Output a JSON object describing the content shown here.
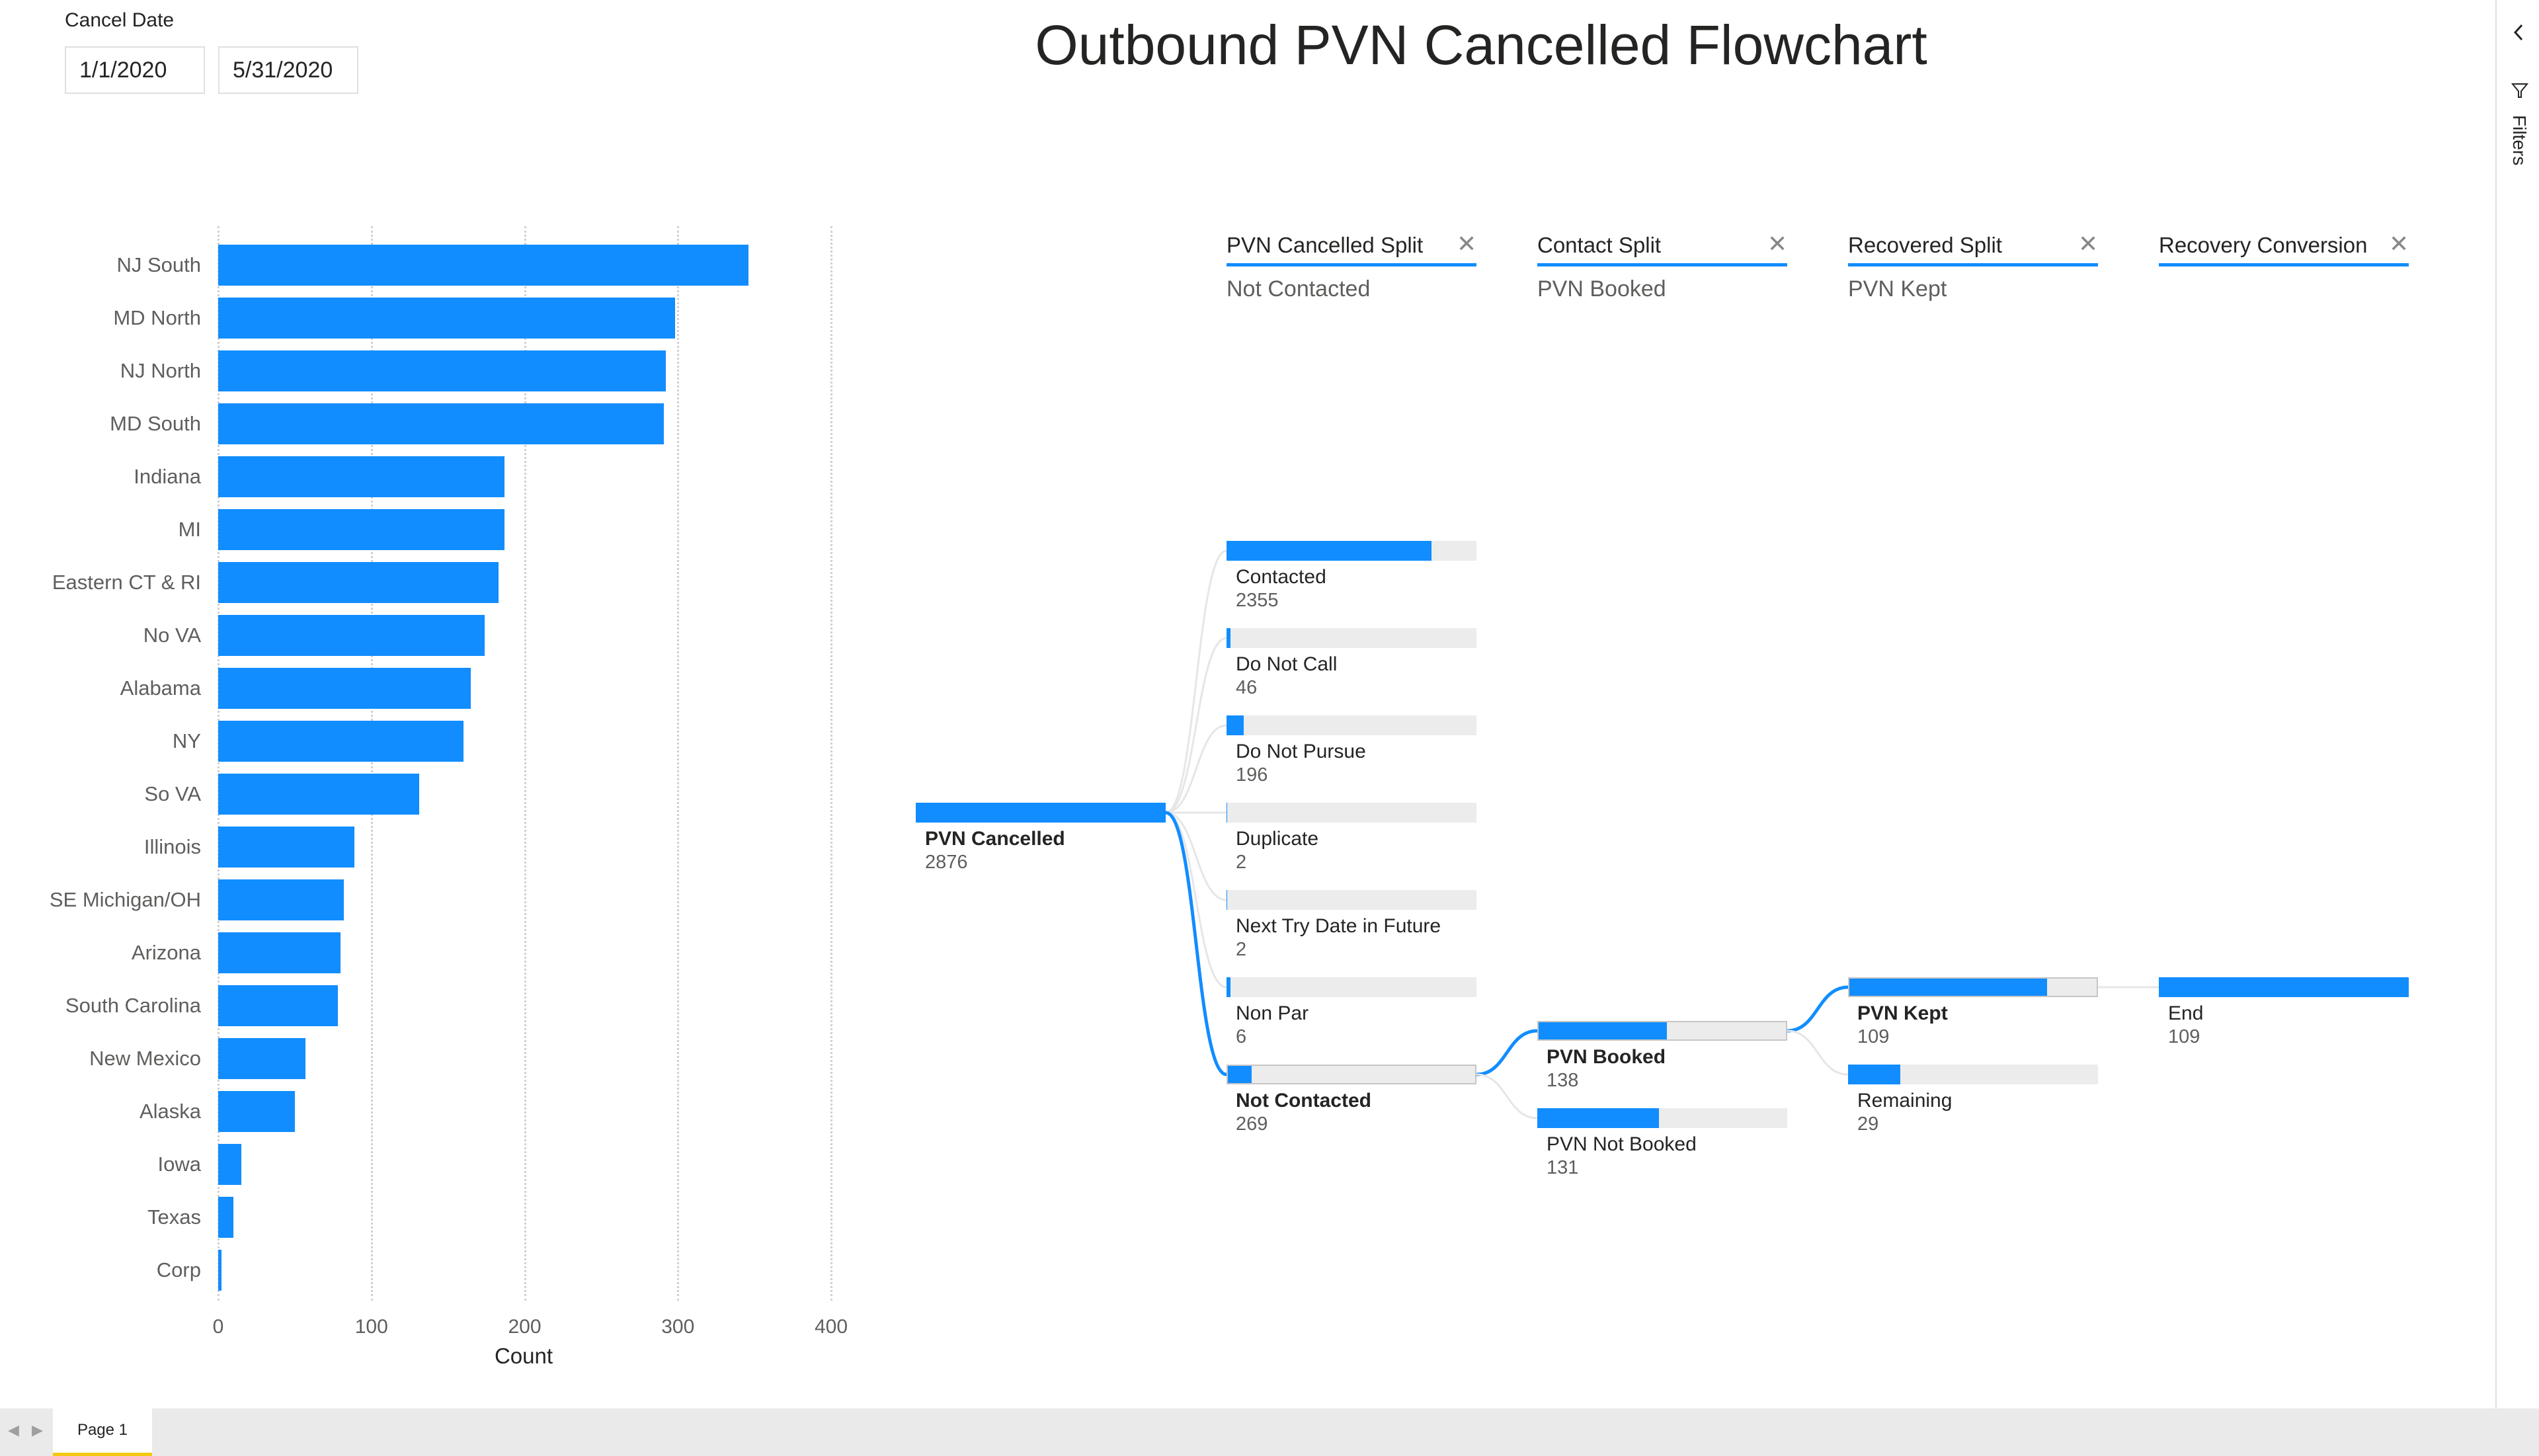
{
  "slicer": {
    "title": "Cancel Date",
    "start": "1/1/2020",
    "end": "5/31/2020"
  },
  "page_title": "Outbound PVN Cancelled Flowchart",
  "chart_data": {
    "type": "bar",
    "orientation": "horizontal",
    "categories": [
      "NJ South",
      "MD North",
      "NJ North",
      "MD South",
      "Indiana",
      "MI",
      "Eastern CT & RI",
      "No VA",
      "Alabama",
      "NY",
      "So VA",
      "Illinois",
      "SE Michigan/OH",
      "Arizona",
      "South Carolina",
      "New Mexico",
      "Alaska",
      "Iowa",
      "Texas",
      "Corp"
    ],
    "values": [
      346,
      298,
      292,
      291,
      187,
      187,
      183,
      174,
      165,
      160,
      131,
      89,
      82,
      80,
      78,
      57,
      50,
      15,
      10,
      2
    ],
    "xlabel": "Count",
    "xlim": [
      0,
      400
    ],
    "xticks": [
      0,
      100,
      200,
      300,
      400
    ],
    "grid": true,
    "color": "#118dff"
  },
  "tree": {
    "columns": [
      {
        "header": "PVN Cancelled Split",
        "selected": "Not Contacted"
      },
      {
        "header": "Contact Split",
        "selected": "PVN Booked"
      },
      {
        "header": "Recovered Split",
        "selected": "PVN Kept"
      },
      {
        "header": "Recovery Conversion",
        "selected": ""
      }
    ],
    "root": {
      "label": "PVN Cancelled",
      "value": "2876"
    },
    "level1": [
      {
        "label": "Contacted",
        "value": "2355",
        "fraction": 0.82,
        "selected": false
      },
      {
        "label": "Do Not Call",
        "value": "46",
        "fraction": 0.016,
        "selected": false
      },
      {
        "label": "Do Not Pursue",
        "value": "196",
        "fraction": 0.068,
        "selected": false
      },
      {
        "label": "Duplicate",
        "value": "2",
        "fraction": 0.0007,
        "selected": false
      },
      {
        "label": "Next Try Date in Future",
        "value": "2",
        "fraction": 0.0007,
        "selected": false
      },
      {
        "label": "Non Par",
        "value": "6",
        "fraction": 0.002,
        "selected": false
      },
      {
        "label": "Not Contacted",
        "value": "269",
        "fraction": 0.094,
        "selected": true
      }
    ],
    "level2": [
      {
        "label": "PVN Booked",
        "value": "138",
        "fraction": 0.513,
        "selected": true
      },
      {
        "label": "PVN Not Booked",
        "value": "131",
        "fraction": 0.487,
        "selected": false
      }
    ],
    "level3": [
      {
        "label": "PVN Kept",
        "value": "109",
        "fraction": 0.79,
        "selected": true
      },
      {
        "label": "Remaining",
        "value": "29",
        "fraction": 0.21,
        "selected": false
      }
    ],
    "level4": [
      {
        "label": "End",
        "value": "109",
        "fraction": 1.0,
        "selected": false
      }
    ]
  },
  "rail": {
    "label": "Filters",
    "collapse_icon": "chevron-left-icon",
    "filter_icon": "filter-icon"
  },
  "tabs": {
    "page": "Page 1"
  }
}
